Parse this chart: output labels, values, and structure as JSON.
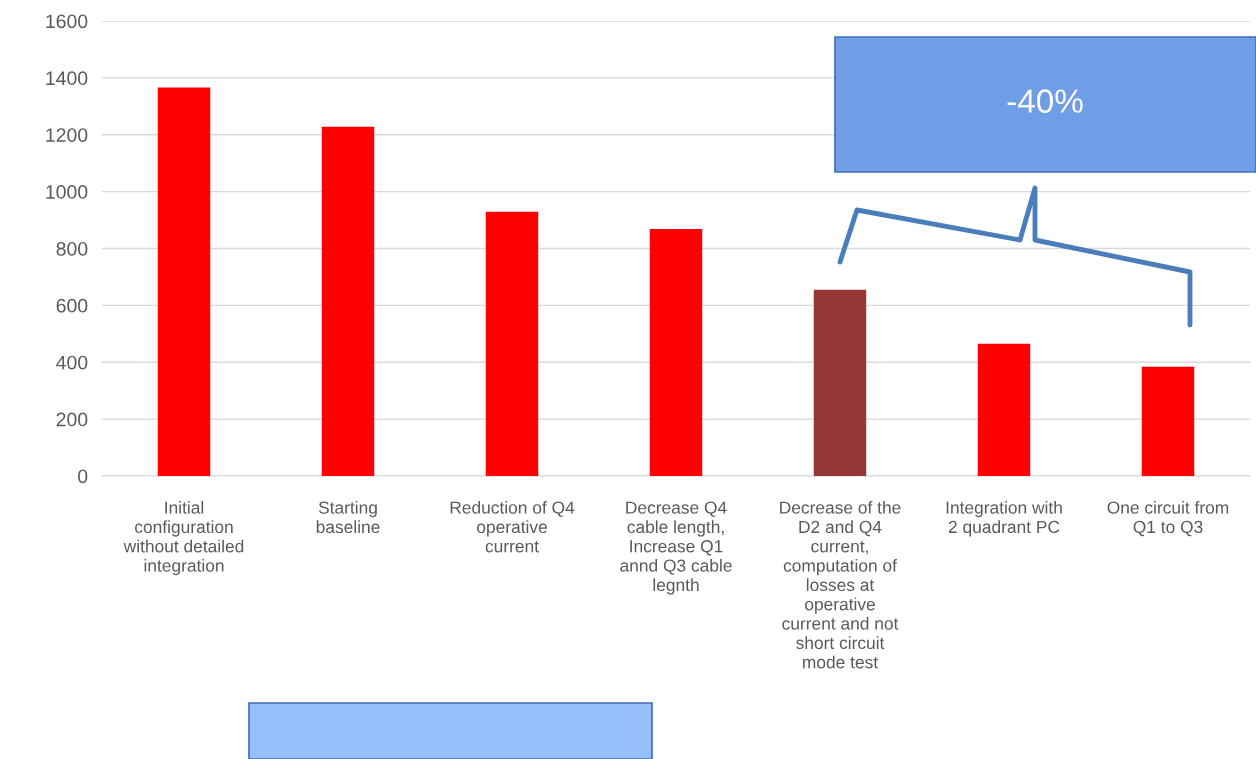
{
  "chart_data": {
    "type": "bar",
    "categories": [
      "Initial\nconfiguration\nwithout detailed\nintegration",
      "Starting\nbaseline",
      "Reduction of Q4\noperative\ncurrent",
      "Decrease Q4\ncable length,\nIncrease Q1\nannd Q3 cable\nlegnth",
      "Decrease of the\nD2 and Q4\ncurrent,\ncomputation of\nlosses at\noperative\ncurrent and not\nshort circuit\nmode test",
      "Integration with\n2 quadrant PC",
      "One circuit from\nQ1 to Q3"
    ],
    "values": [
      1366,
      1228,
      929,
      869,
      655,
      465,
      384
    ],
    "colors": [
      "#ff0000",
      "#ff0000",
      "#ff0000",
      "#ff0000",
      "#953735",
      "#ff0000",
      "#ff0000"
    ],
    "ylim": [
      0,
      1600
    ],
    "yticks": [
      0,
      200,
      400,
      600,
      800,
      1000,
      1200,
      1400,
      1600
    ],
    "grid": "y",
    "annotations": [
      "-40%"
    ]
  }
}
